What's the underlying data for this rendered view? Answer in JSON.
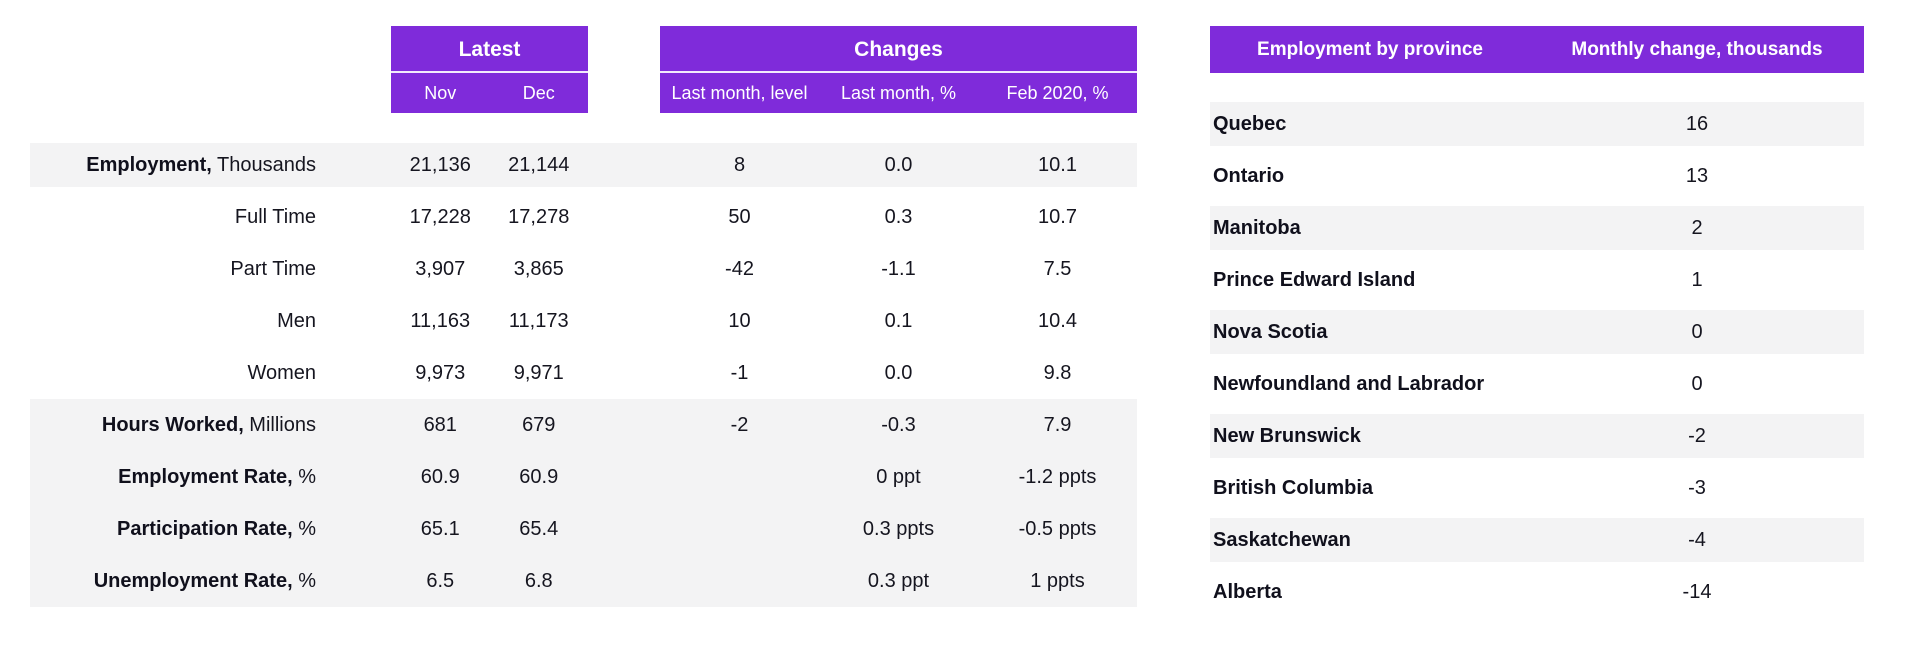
{
  "colors": {
    "header_purple": "#7F2BDA",
    "band_gray": "#f3f3f4",
    "text_dark": "#15151f",
    "header_text": "#ffffff"
  },
  "left_table": {
    "header": {
      "latest_label": "Latest",
      "latest_sub": [
        "Nov",
        "Dec"
      ],
      "changes_label": "Changes",
      "changes_sub": [
        "Last month, level",
        "Last month, %",
        "Feb 2020, %"
      ]
    },
    "rows": [
      {
        "label_bold": "Employment,",
        "label_rest": " Thousands",
        "nov": "21,136",
        "dec": "21,144",
        "chg_level": "8",
        "chg_pct": "0.0",
        "feb2020": "10.1",
        "shade": "band"
      },
      {
        "label_bold": "",
        "label_rest": "Full Time",
        "nov": "17,228",
        "dec": "17,278",
        "chg_level": "50",
        "chg_pct": "0.3",
        "feb2020": "10.7",
        "shade": "none"
      },
      {
        "label_bold": "",
        "label_rest": "Part Time",
        "nov": "3,907",
        "dec": "3,865",
        "chg_level": "-42",
        "chg_pct": "-1.1",
        "feb2020": "7.5",
        "shade": "none"
      },
      {
        "label_bold": "",
        "label_rest": "Men",
        "nov": "11,163",
        "dec": "11,173",
        "chg_level": "10",
        "chg_pct": "0.1",
        "feb2020": "10.4",
        "shade": "none"
      },
      {
        "label_bold": "",
        "label_rest": "Women",
        "nov": "9,973",
        "dec": "9,971",
        "chg_level": "-1",
        "chg_pct": "0.0",
        "feb2020": "9.8",
        "shade": "none"
      },
      {
        "label_bold": "Hours Worked,",
        "label_rest": " Millions",
        "nov": "681",
        "dec": "679",
        "chg_level": "-2",
        "chg_pct": "-0.3",
        "feb2020": "7.9",
        "shade": "solid"
      },
      {
        "label_bold": "Employment Rate,",
        "label_rest": " %",
        "nov": "60.9",
        "dec": "60.9",
        "chg_level": "",
        "chg_pct": "0 ppt",
        "feb2020": "-1.2 ppts",
        "shade": "solid"
      },
      {
        "label_bold": "Participation Rate,",
        "label_rest": " %",
        "nov": "65.1",
        "dec": "65.4",
        "chg_level": "",
        "chg_pct": "0.3 ppts",
        "feb2020": "-0.5 ppts",
        "shade": "solid"
      },
      {
        "label_bold": "Unemployment Rate,",
        "label_rest": " %",
        "nov": "6.5",
        "dec": "6.8",
        "chg_level": "",
        "chg_pct": "0.3 ppt",
        "feb2020": "1 ppts",
        "shade": "solid"
      }
    ]
  },
  "province_table": {
    "header": {
      "col1": "Employment by province",
      "col2": "Monthly change, thousands"
    },
    "rows": [
      {
        "province": "Quebec",
        "value": "16",
        "shade": "band"
      },
      {
        "province": "Ontario",
        "value": "13",
        "shade": "none"
      },
      {
        "province": "Manitoba",
        "value": "2",
        "shade": "band"
      },
      {
        "province": "Prince Edward Island",
        "value": "1",
        "shade": "none"
      },
      {
        "province": "Nova Scotia",
        "value": "0",
        "shade": "band"
      },
      {
        "province": "Newfoundland and Labrador",
        "value": "0",
        "shade": "none"
      },
      {
        "province": "New Brunswick",
        "value": "-2",
        "shade": "band"
      },
      {
        "province": "British Columbia",
        "value": "-3",
        "shade": "none"
      },
      {
        "province": "Saskatchewan",
        "value": "-4",
        "shade": "band"
      },
      {
        "province": "Alberta",
        "value": "-14",
        "shade": "none"
      }
    ]
  },
  "chart_data": [
    {
      "type": "table",
      "title": "Labour force statistics: Latest and Changes",
      "columns": [
        "",
        "Latest Nov",
        "Latest Dec",
        "Changes Last month, level",
        "Changes Last month, %",
        "Changes Feb 2020, %"
      ],
      "rows": [
        [
          "Employment, Thousands",
          "21,136",
          "21,144",
          "8",
          "0.0",
          "10.1"
        ],
        [
          "Full Time",
          "17,228",
          "17,278",
          "50",
          "0.3",
          "10.7"
        ],
        [
          "Part Time",
          "3,907",
          "3,865",
          "-42",
          "-1.1",
          "7.5"
        ],
        [
          "Men",
          "11,163",
          "11,173",
          "10",
          "0.1",
          "10.4"
        ],
        [
          "Women",
          "9,973",
          "9,971",
          "-1",
          "0.0",
          "9.8"
        ],
        [
          "Hours Worked, Millions",
          "681",
          "679",
          "-2",
          "-0.3",
          "7.9"
        ],
        [
          "Employment Rate, %",
          "60.9",
          "60.9",
          "",
          "0 ppt",
          "-1.2 ppts"
        ],
        [
          "Participation Rate, %",
          "65.1",
          "65.4",
          "",
          "0.3 ppts",
          "-0.5 ppts"
        ],
        [
          "Unemployment Rate, %",
          "6.5",
          "6.8",
          "",
          "0.3 ppt",
          "1 ppts"
        ]
      ]
    },
    {
      "type": "table",
      "title": "Employment by province",
      "columns": [
        "Employment by province",
        "Monthly change, thousands"
      ],
      "rows": [
        [
          "Quebec",
          16
        ],
        [
          "Ontario",
          13
        ],
        [
          "Manitoba",
          2
        ],
        [
          "Prince Edward Island",
          1
        ],
        [
          "Nova Scotia",
          0
        ],
        [
          "Newfoundland and Labrador",
          0
        ],
        [
          "New Brunswick",
          -2
        ],
        [
          "British Columbia",
          -3
        ],
        [
          "Saskatchewan",
          -4
        ],
        [
          "Alberta",
          -14
        ]
      ]
    }
  ]
}
